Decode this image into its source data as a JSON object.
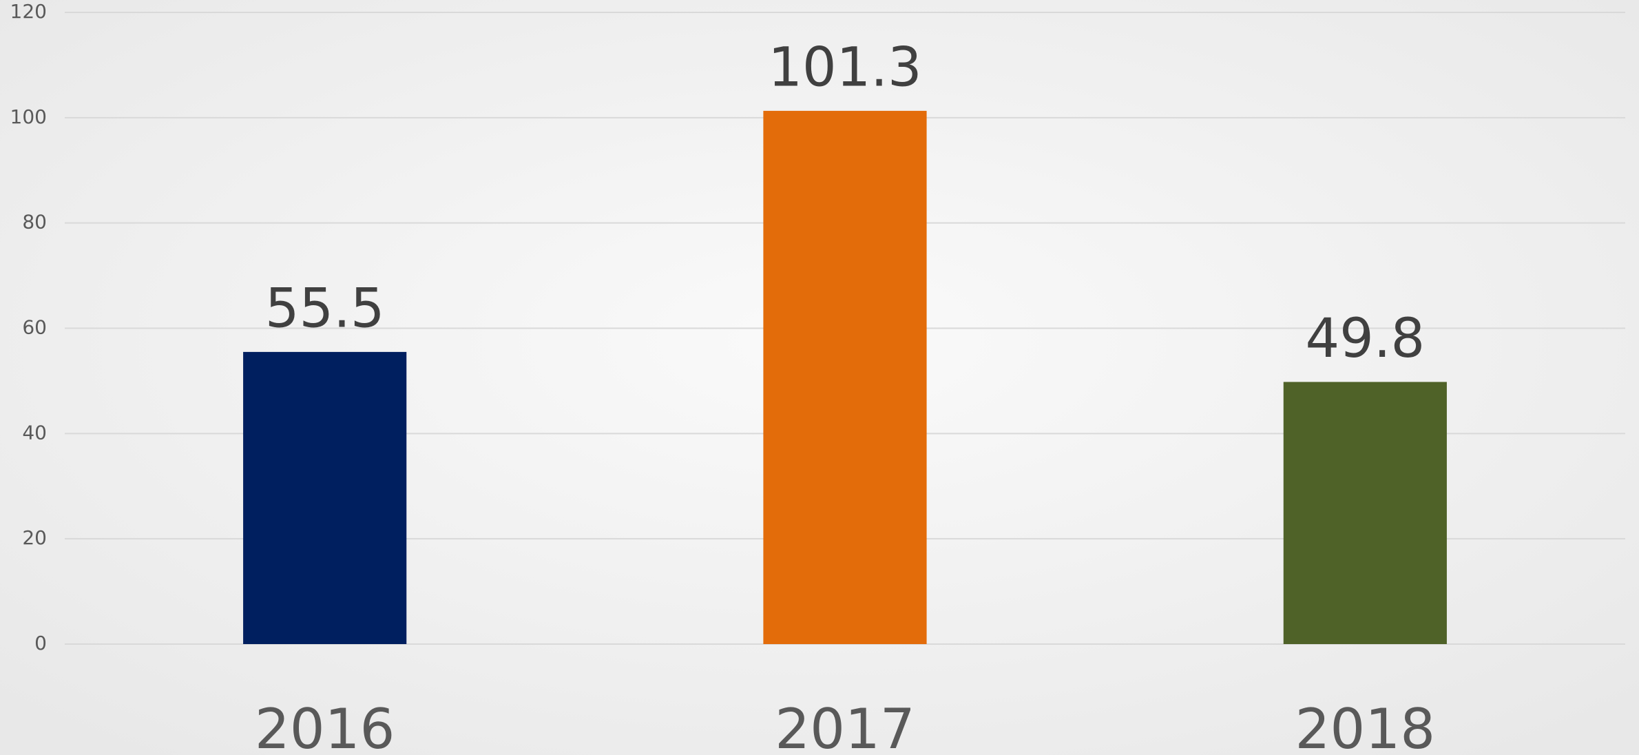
{
  "chart_data": {
    "type": "bar",
    "categories": [
      "2016",
      "2017",
      "2018"
    ],
    "values": [
      55.5,
      101.3,
      49.8
    ],
    "colors": [
      "#001f5f",
      "#e36c0a",
      "#4f6228"
    ],
    "ylim": [
      0,
      120
    ],
    "yticks": [
      0,
      20,
      40,
      60,
      80,
      100,
      120
    ],
    "grid": true
  }
}
